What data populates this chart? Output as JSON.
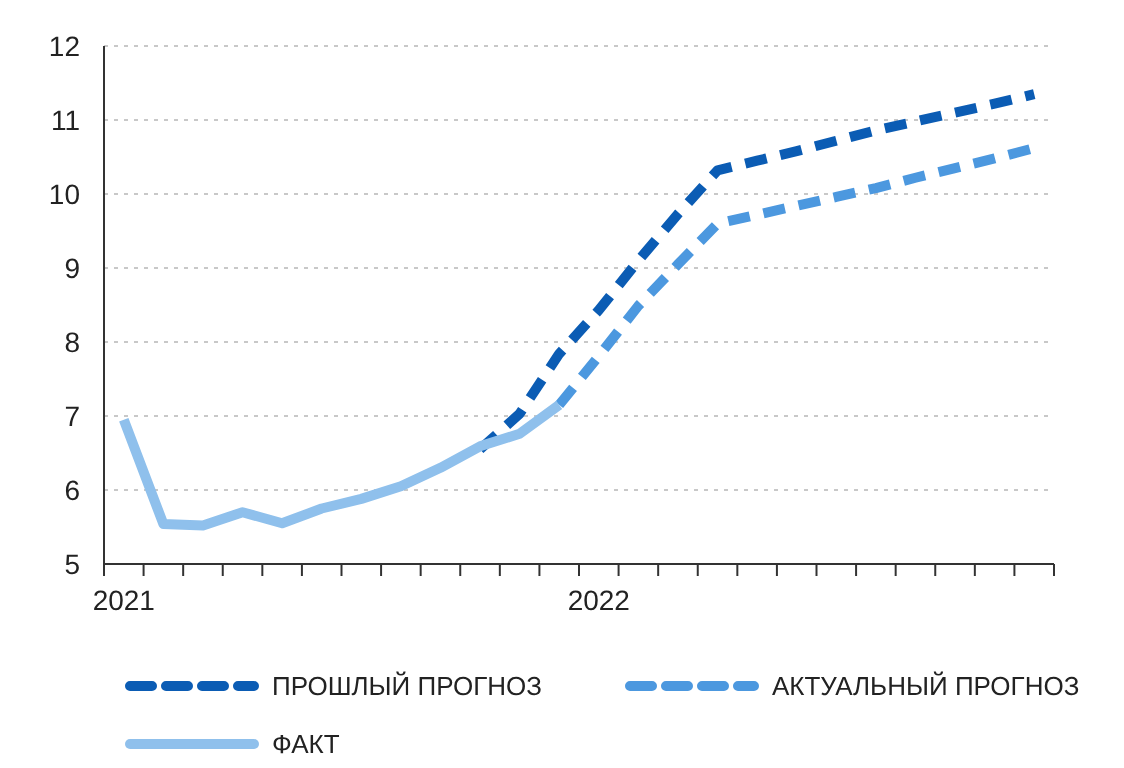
{
  "chart_data": {
    "type": "line",
    "categories": [
      "2021",
      null,
      null,
      null,
      null,
      null,
      null,
      null,
      null,
      null,
      null,
      null,
      "2022",
      null,
      null,
      null,
      null,
      null,
      null,
      null,
      null,
      null,
      null,
      null
    ],
    "ylim": [
      5,
      12
    ],
    "yticks": [
      5,
      6,
      7,
      8,
      9,
      10,
      11,
      12
    ],
    "grid": "y",
    "legend": "bottom",
    "marker": "none",
    "series": [
      {
        "name": "ПРОШЛЫЙ ПРОГНОЗ",
        "color": "#0b5cb4",
        "line_style": "dashed",
        "values": [
          null,
          null,
          null,
          null,
          null,
          null,
          null,
          null,
          null,
          6.55,
          7.03,
          7.84,
          8.43,
          9.1,
          9.73,
          10.32,
          10.45,
          10.58,
          10.72,
          10.86,
          10.98,
          11.1,
          11.22,
          11.35
        ]
      },
      {
        "name": "АКТУАЛЬНЫЙ ПРОГНОЗ",
        "color": "#4c98df",
        "line_style": "dashed",
        "values": [
          null,
          null,
          null,
          null,
          null,
          null,
          null,
          null,
          null,
          null,
          null,
          7.15,
          7.81,
          8.49,
          9.05,
          9.6,
          9.72,
          9.84,
          9.96,
          10.08,
          10.22,
          10.35,
          10.48,
          10.62
        ]
      },
      {
        "name": "ФАКТ",
        "color": "#8fc0ec",
        "line_style": "solid",
        "values": [
          6.95,
          5.54,
          5.52,
          5.7,
          5.55,
          5.75,
          5.88,
          6.05,
          6.3,
          6.59,
          6.76,
          7.15,
          null,
          null,
          null,
          null,
          null,
          null,
          null,
          null,
          null,
          null,
          null,
          null
        ]
      }
    ]
  }
}
